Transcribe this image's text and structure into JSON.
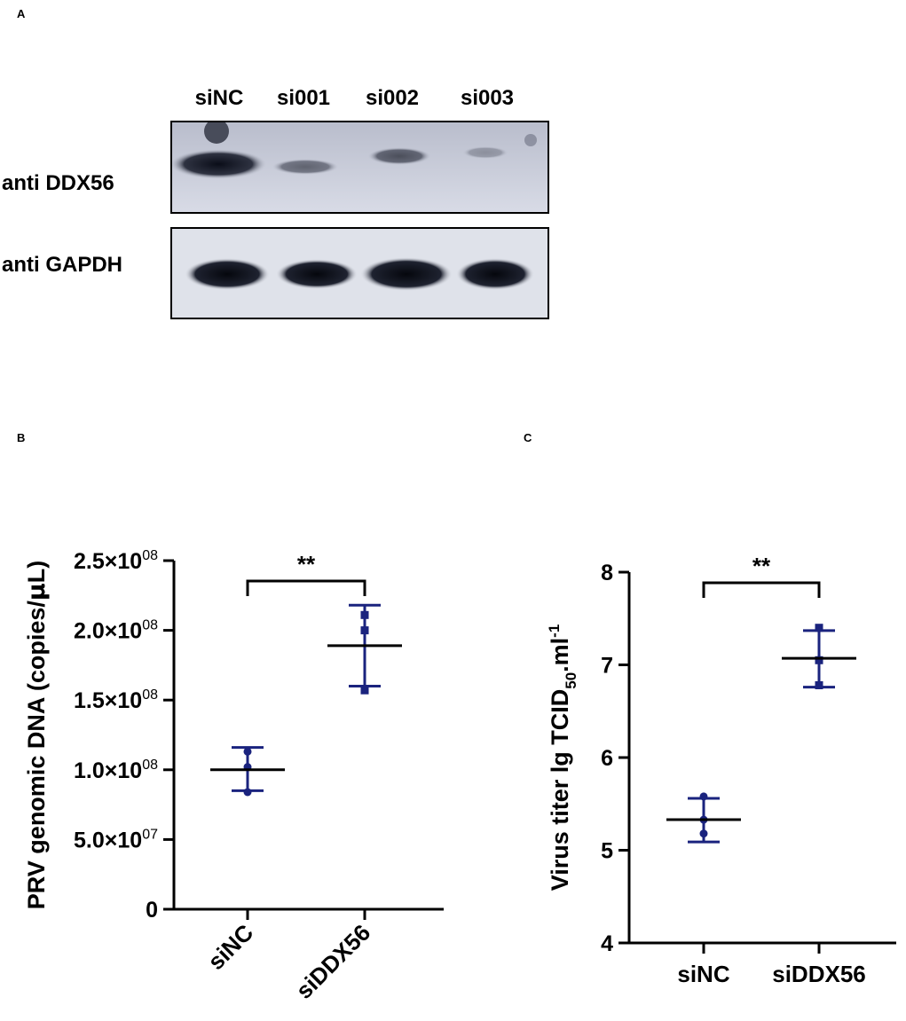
{
  "panels": {
    "a": "A",
    "b": "B",
    "c": "C"
  },
  "blot": {
    "lanes": [
      "siNC",
      "si001",
      "si002",
      "si003"
    ],
    "rows": [
      {
        "label": "anti DDX56",
        "intensities": [
          1.0,
          0.45,
          0.5,
          0.2
        ]
      },
      {
        "label": "anti GAPDH",
        "intensities": [
          1.0,
          0.95,
          1.0,
          0.95
        ]
      }
    ]
  },
  "chart_data": [
    {
      "type": "scatter",
      "title": "",
      "ylabel_parts": [
        "PRV genomic DNA (copies/",
        "μ",
        "L)"
      ],
      "xlabel": "",
      "categories": [
        "siNC",
        "siDDX56"
      ],
      "ylim": [
        0,
        250000000
      ],
      "y_ticks": [
        0,
        50000000,
        100000000,
        150000000,
        200000000,
        250000000
      ],
      "y_tick_labels": [
        {
          "mantissa": "0",
          "exp": ""
        },
        {
          "mantissa": "5.0×10",
          "exp": "07"
        },
        {
          "mantissa": "1.0×10",
          "exp": "08"
        },
        {
          "mantissa": "1.5×10",
          "exp": "08"
        },
        {
          "mantissa": "2.0×10",
          "exp": "08"
        },
        {
          "mantissa": "2.5×10",
          "exp": "08"
        }
      ],
      "series": [
        {
          "category": "siNC",
          "points": [
            113000000,
            102000000,
            84000000
          ],
          "mean": 100000000,
          "sd_low": 85000000,
          "sd_high": 116000000,
          "marker": "circle"
        },
        {
          "category": "siDDX56",
          "points": [
            211000000,
            200000000,
            157000000
          ],
          "mean": 189000000,
          "sd_low": 160000000,
          "sd_high": 218000000,
          "marker": "square"
        }
      ],
      "significance": "**",
      "x_labels_rotated": true,
      "color": "#1a237e",
      "grid": false
    },
    {
      "type": "scatter",
      "title": "",
      "ylabel_parts": [
        "Virus titer lg TCID",
        "50",
        ".ml",
        "-1"
      ],
      "xlabel": "",
      "categories": [
        "siNC",
        "siDDX56"
      ],
      "ylim": [
        4,
        8
      ],
      "y_ticks": [
        4,
        5,
        6,
        7,
        8
      ],
      "y_tick_labels": [
        {
          "mantissa": "4",
          "exp": ""
        },
        {
          "mantissa": "5",
          "exp": ""
        },
        {
          "mantissa": "6",
          "exp": ""
        },
        {
          "mantissa": "7",
          "exp": ""
        },
        {
          "mantissa": "8",
          "exp": ""
        }
      ],
      "series": [
        {
          "category": "siNC",
          "points": [
            5.58,
            5.33,
            5.18
          ],
          "mean": 5.33,
          "sd_low": 5.09,
          "sd_high": 5.56,
          "marker": "circle"
        },
        {
          "category": "siDDX56",
          "points": [
            7.4,
            7.05,
            6.78
          ],
          "mean": 7.07,
          "sd_low": 6.76,
          "sd_high": 7.37,
          "marker": "square"
        }
      ],
      "significance": "**",
      "x_labels_rotated": false,
      "color": "#1a237e",
      "grid": false
    }
  ]
}
